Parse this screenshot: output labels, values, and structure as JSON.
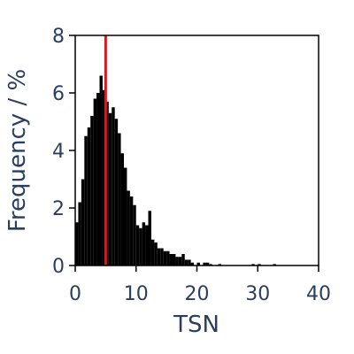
{
  "chart_data": {
    "type": "bar",
    "xlabel": "TSN",
    "ylabel": "Frequency / %",
    "xlim": [
      0,
      40
    ],
    "ylim": [
      0,
      8
    ],
    "x_ticks": [
      0,
      10,
      20,
      30,
      40
    ],
    "y_ticks": [
      0,
      2,
      4,
      6,
      8
    ],
    "grid": false,
    "bin_width": 0.5,
    "bar_color": "#000000",
    "marker_line": {
      "x": 5,
      "color": "#e0161e"
    },
    "bins": [
      {
        "x": 0.0,
        "y": 1.5
      },
      {
        "x": 0.5,
        "y": 2.2
      },
      {
        "x": 1.0,
        "y": 3.0
      },
      {
        "x": 1.5,
        "y": 4.5
      },
      {
        "x": 2.0,
        "y": 4.8
      },
      {
        "x": 2.5,
        "y": 5.2
      },
      {
        "x": 3.0,
        "y": 5.8
      },
      {
        "x": 3.5,
        "y": 6.0
      },
      {
        "x": 4.0,
        "y": 6.6
      },
      {
        "x": 4.5,
        "y": 6.1
      },
      {
        "x": 5.0,
        "y": 5.7
      },
      {
        "x": 5.5,
        "y": 5.3
      },
      {
        "x": 6.0,
        "y": 5.5
      },
      {
        "x": 6.5,
        "y": 5.1
      },
      {
        "x": 7.0,
        "y": 4.6
      },
      {
        "x": 7.5,
        "y": 3.9
      },
      {
        "x": 8.0,
        "y": 3.4
      },
      {
        "x": 8.5,
        "y": 2.6
      },
      {
        "x": 9.0,
        "y": 2.4
      },
      {
        "x": 9.5,
        "y": 2.1
      },
      {
        "x": 10.0,
        "y": 1.4
      },
      {
        "x": 10.5,
        "y": 1.3
      },
      {
        "x": 11.0,
        "y": 1.5
      },
      {
        "x": 11.5,
        "y": 1.4
      },
      {
        "x": 12.0,
        "y": 1.9
      },
      {
        "x": 12.5,
        "y": 0.9
      },
      {
        "x": 13.0,
        "y": 0.8
      },
      {
        "x": 13.5,
        "y": 0.6
      },
      {
        "x": 14.0,
        "y": 0.6
      },
      {
        "x": 14.5,
        "y": 0.5
      },
      {
        "x": 15.0,
        "y": 0.5
      },
      {
        "x": 15.5,
        "y": 0.4
      },
      {
        "x": 16.0,
        "y": 0.4
      },
      {
        "x": 16.5,
        "y": 0.3
      },
      {
        "x": 17.0,
        "y": 0.3
      },
      {
        "x": 17.5,
        "y": 0.4
      },
      {
        "x": 18.0,
        "y": 0.2
      },
      {
        "x": 18.5,
        "y": 0.2
      },
      {
        "x": 19.0,
        "y": 0.1
      },
      {
        "x": 19.5,
        "y": 0.0
      },
      {
        "x": 20.0,
        "y": 0.1
      },
      {
        "x": 20.5,
        "y": 0.0
      },
      {
        "x": 21.0,
        "y": 0.1
      },
      {
        "x": 21.5,
        "y": 0.1
      },
      {
        "x": 22.0,
        "y": 0.05
      },
      {
        "x": 22.5,
        "y": 0.0
      },
      {
        "x": 23.0,
        "y": 0.0
      },
      {
        "x": 23.5,
        "y": 0.05
      },
      {
        "x": 29.0,
        "y": 0.05
      },
      {
        "x": 30.0,
        "y": 0.05
      },
      {
        "x": 32.5,
        "y": 0.05
      }
    ]
  }
}
